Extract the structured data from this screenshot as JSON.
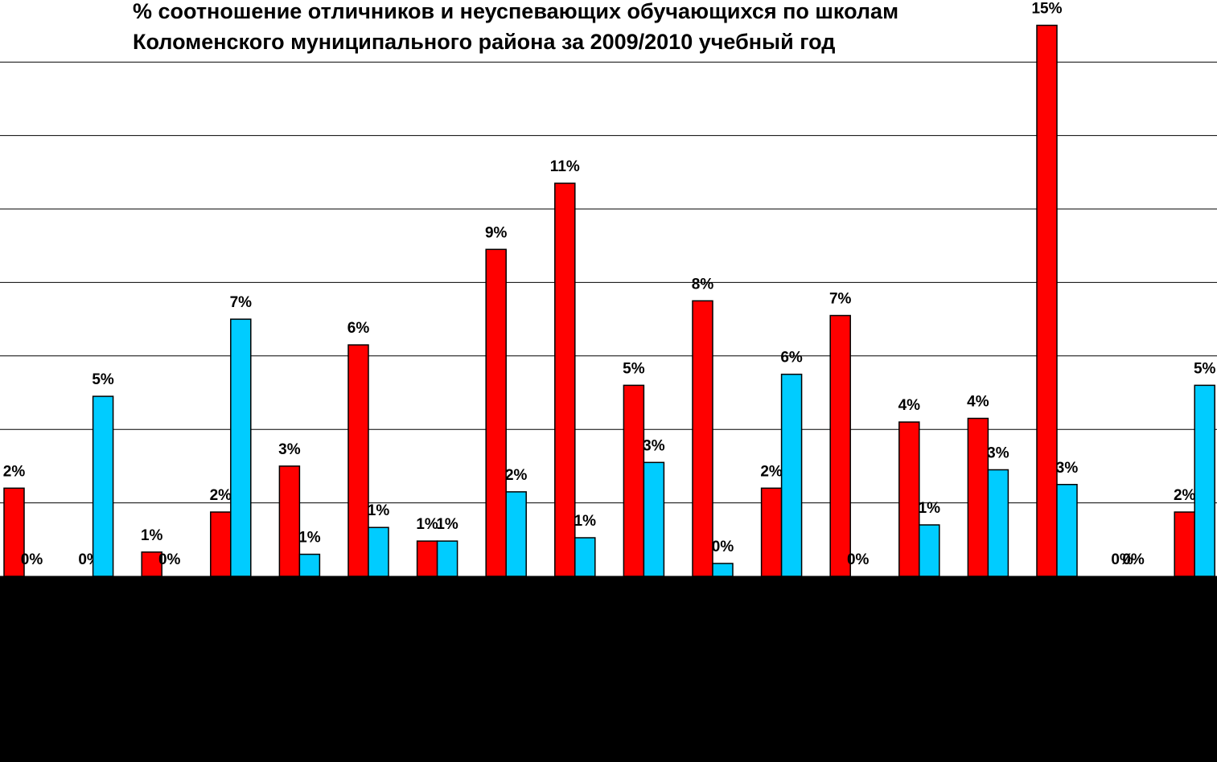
{
  "chart_data": {
    "type": "bar",
    "title": [
      "% соотношение отличников и неуспевающих обучающихся по школам",
      "Коломенского муниципального района за 2009/2010 учебный год"
    ],
    "categories": [
      null,
      null,
      null,
      null,
      null,
      null,
      null,
      null,
      null,
      null,
      null,
      null,
      null,
      null,
      null,
      null,
      null,
      null
    ],
    "series": [
      {
        "color": "#ff0000",
        "values": [
          2.4,
          0,
          0.66,
          1.75,
          3.0,
          6.3,
          0.96,
          8.9,
          10.7,
          5.2,
          7.5,
          2.4,
          7.1,
          4.2,
          4.3,
          15.0,
          0,
          1.75
        ],
        "value_labels": [
          "2%",
          "0%",
          "1%",
          "2%",
          "3%",
          "6%",
          "1%",
          "9%",
          "11%",
          "5%",
          "8%",
          "2%",
          "7%",
          "4%",
          "4%",
          "15%",
          "0%",
          "2%"
        ]
      },
      {
        "color": "#00ccff",
        "values": [
          0,
          4.9,
          0,
          7.0,
          0.6,
          1.33,
          0.96,
          2.3,
          1.05,
          3.1,
          0.35,
          5.5,
          0,
          1.4,
          2.9,
          2.5,
          0,
          5.2
        ],
        "value_labels": [
          "0%",
          "5%",
          "0%",
          "7%",
          "1%",
          "1%",
          "1%",
          "2%",
          "1%",
          "3%",
          "0%",
          "6%",
          "0%",
          "1%",
          "3%",
          "3%",
          "0%",
          "5%"
        ]
      }
    ],
    "ylim": [
      0,
      16
    ],
    "yticks": [
      0,
      2,
      4,
      6,
      8,
      10,
      12,
      14
    ],
    "grid": true
  }
}
